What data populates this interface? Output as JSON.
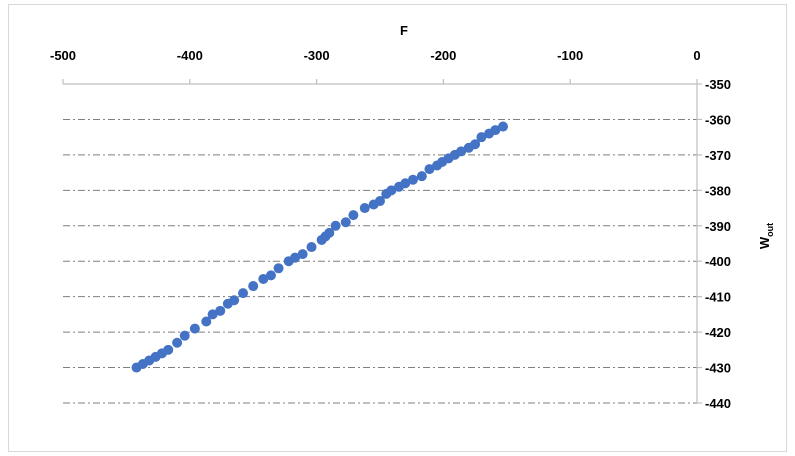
{
  "chart_data": {
    "type": "scatter",
    "title": "",
    "xlabel": "F",
    "ylabel": "W",
    "ylabel_subscript": "out",
    "x_axis_position": "top",
    "y_axis_position": "right",
    "xlim": [
      -500,
      0
    ],
    "ylim": [
      -440,
      -350
    ],
    "x_ticks": [
      -500,
      -400,
      -300,
      -200,
      -100,
      0
    ],
    "y_ticks": [
      -350,
      -360,
      -370,
      -380,
      -390,
      -400,
      -410,
      -420,
      -430,
      -440
    ],
    "grid": "horizontal dash-dot",
    "legend": "none",
    "marker_color": "#4472C4",
    "grid_color": "#7f7f7f",
    "axis_color": "#bfbfbf",
    "series": [
      {
        "x": [
          -442,
          -437,
          -432,
          -427,
          -422,
          -417,
          -410,
          -404,
          -396,
          -387,
          -382,
          -376,
          -370,
          -365,
          -358,
          -350,
          -342,
          -336,
          -330,
          -322,
          -317,
          -311,
          -304,
          -296,
          -293,
          -290,
          -285,
          -277,
          -271,
          -262,
          -255,
          -250,
          -245,
          -241,
          -235,
          -230,
          -224,
          -217,
          -211,
          -205,
          -201,
          -196,
          -191,
          -186,
          -180,
          -175,
          -170,
          -164,
          -159,
          -153
        ],
        "y": [
          -430,
          -429,
          -428,
          -427,
          -426,
          -425,
          -423,
          -421,
          -419,
          -417,
          -415,
          -414,
          -412,
          -411,
          -409,
          -407,
          -405,
          -404,
          -402,
          -400,
          -399,
          -398,
          -396,
          -394,
          -393,
          -392,
          -390,
          -389,
          -387,
          -385,
          -384,
          -383,
          -381,
          -380,
          -379,
          -378,
          -377,
          -376,
          -374,
          -373,
          -372,
          -371,
          -370,
          -369,
          -368,
          -367,
          -365,
          -364,
          -363,
          -362
        ]
      }
    ]
  }
}
